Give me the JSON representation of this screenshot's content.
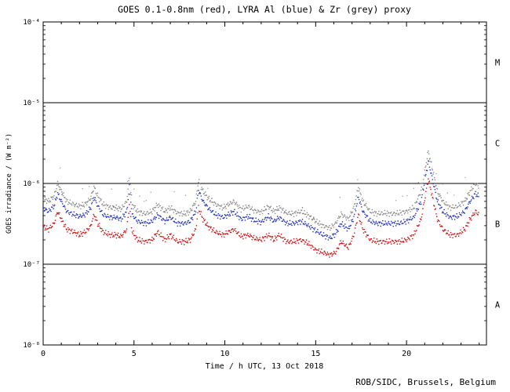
{
  "page": {
    "footer": "ROB/SIDC, Brussels, Belgium"
  },
  "chart_data": {
    "type": "scatter",
    "title": "GOES 0.1-0.8nm (red), LYRA Al (blue) & Zr (grey) proxy",
    "xlabel": "Time / h UTC, 13 Oct 2018",
    "ylabel": "GOES irradiance / (W m⁻²)",
    "x_range": [
      0,
      24.4
    ],
    "x_major_ticks": [
      0,
      5,
      10,
      15,
      20
    ],
    "x_major_tick_labels": [
      "0",
      "5",
      "10",
      "15",
      "20"
    ],
    "x_minor_tick_step": 1,
    "y_scale": "log",
    "y_range_exponents": [
      -8,
      -4
    ],
    "y_ticks": [
      {
        "exp": -4,
        "label": "10⁻⁴"
      },
      {
        "exp": -5,
        "label": "10⁻⁵"
      },
      {
        "exp": -6,
        "label": "10⁻⁶"
      },
      {
        "exp": -7,
        "label": "10⁻⁷"
      },
      {
        "exp": -8,
        "label": "10⁻⁸"
      }
    ],
    "threshold_lines": [
      1e-05,
      1e-06,
      1e-07
    ],
    "flare_class_labels": [
      {
        "label": "M",
        "value": 3.16e-05
      },
      {
        "label": "C",
        "value": 3.16e-06
      },
      {
        "label": "B",
        "value": 3.16e-07
      },
      {
        "label": "A",
        "value": 3.16e-08
      }
    ],
    "grid": false,
    "legend_position": "in-title",
    "values_unit": "1e-7 W m^-2",
    "value_scale": 1e-07,
    "x_hours": [
      0,
      0.3,
      0.6,
      0.8,
      1.0,
      1.3,
      1.7,
      2.0,
      2.3,
      2.6,
      2.8,
      3.0,
      3.3,
      3.7,
      4.0,
      4.3,
      4.6,
      4.75,
      4.9,
      5.2,
      5.6,
      6.0,
      6.3,
      6.7,
      7.0,
      7.4,
      7.8,
      8.1,
      8.4,
      8.55,
      8.8,
      9.1,
      9.5,
      9.9,
      10.2,
      10.5,
      10.9,
      11.3,
      11.6,
      12.0,
      12.4,
      12.7,
      13.0,
      13.4,
      13.8,
      14.2,
      14.6,
      15.0,
      15.4,
      15.8,
      16.1,
      16.4,
      16.8,
      17.1,
      17.35,
      17.6,
      18.0,
      18.4,
      18.8,
      19.2,
      19.6,
      20.0,
      20.4,
      20.8,
      21.0,
      21.2,
      21.4,
      21.7,
      22.0,
      22.4,
      22.8,
      23.2,
      23.5,
      23.8,
      24.0
    ],
    "series": [
      {
        "name": "GOES 0.1-0.8nm",
        "color": "#cc1111",
        "scatter_level": 0,
        "values": [
          2.9,
          2.7,
          3.2,
          4.5,
          3.6,
          2.7,
          2.5,
          2.3,
          2.5,
          2.9,
          4.1,
          3.2,
          2.5,
          2.3,
          2.3,
          2.2,
          2.7,
          5.4,
          2.5,
          2.0,
          1.9,
          2.0,
          2.5,
          2.0,
          2.3,
          1.9,
          1.9,
          2.0,
          2.7,
          5.0,
          3.6,
          2.9,
          2.5,
          2.3,
          2.5,
          2.7,
          2.2,
          2.3,
          2.1,
          2.0,
          2.3,
          2.0,
          2.3,
          1.9,
          1.9,
          2.0,
          1.8,
          1.5,
          1.4,
          1.3,
          1.4,
          1.9,
          1.6,
          2.3,
          4.1,
          2.7,
          2.0,
          1.9,
          1.9,
          1.9,
          1.9,
          2.0,
          2.3,
          3.6,
          6.3,
          11.5,
          7.2,
          3.6,
          2.7,
          2.3,
          2.3,
          2.7,
          3.6,
          4.5,
          4.1
        ]
      },
      {
        "name": "LYRA Al proxy",
        "color": "#2233bb",
        "scatter_level": 1,
        "values": [
          4.9,
          4.5,
          5.3,
          7.5,
          6.0,
          4.5,
          4.1,
          3.9,
          4.1,
          4.9,
          6.8,
          5.3,
          4.1,
          3.8,
          3.8,
          3.6,
          4.5,
          9.0,
          4.1,
          3.4,
          3.2,
          3.4,
          4.1,
          3.4,
          3.8,
          3.2,
          3.2,
          3.4,
          4.5,
          8.3,
          6.0,
          4.9,
          4.1,
          3.8,
          4.1,
          4.5,
          3.6,
          3.9,
          3.5,
          3.3,
          3.9,
          3.4,
          3.8,
          3.2,
          3.2,
          3.4,
          3.0,
          2.6,
          2.3,
          2.1,
          2.4,
          3.2,
          2.7,
          3.8,
          6.8,
          4.5,
          3.4,
          3.2,
          3.2,
          3.2,
          3.2,
          3.4,
          3.8,
          6.0,
          10.5,
          19.0,
          12.0,
          6.0,
          4.5,
          3.8,
          3.9,
          4.5,
          6.0,
          7.5,
          6.8
        ]
      },
      {
        "name": "LYRA Zr proxy",
        "color": "#8a8a8a",
        "scatter_level": 2,
        "values": [
          6.5,
          6.0,
          7.0,
          10.0,
          8.0,
          6.0,
          5.5,
          5.2,
          5.5,
          6.5,
          9.0,
          7.0,
          5.5,
          5.0,
          5.0,
          4.8,
          6.0,
          12.0,
          5.5,
          4.5,
          4.2,
          4.5,
          5.5,
          4.5,
          5.0,
          4.3,
          4.2,
          4.5,
          6.0,
          11.0,
          8.0,
          6.5,
          5.5,
          5.0,
          5.5,
          6.0,
          4.8,
          5.2,
          4.6,
          4.4,
          5.2,
          4.5,
          5.0,
          4.3,
          4.2,
          4.5,
          4.0,
          3.4,
          3.0,
          2.8,
          3.2,
          4.2,
          3.6,
          5.0,
          9.0,
          6.0,
          4.5,
          4.2,
          4.3,
          4.2,
          4.3,
          4.5,
          5.0,
          8.0,
          14.0,
          25.0,
          16.0,
          8.0,
          6.0,
          5.0,
          5.2,
          6.0,
          8.0,
          10.0,
          9.0
        ]
      }
    ]
  }
}
